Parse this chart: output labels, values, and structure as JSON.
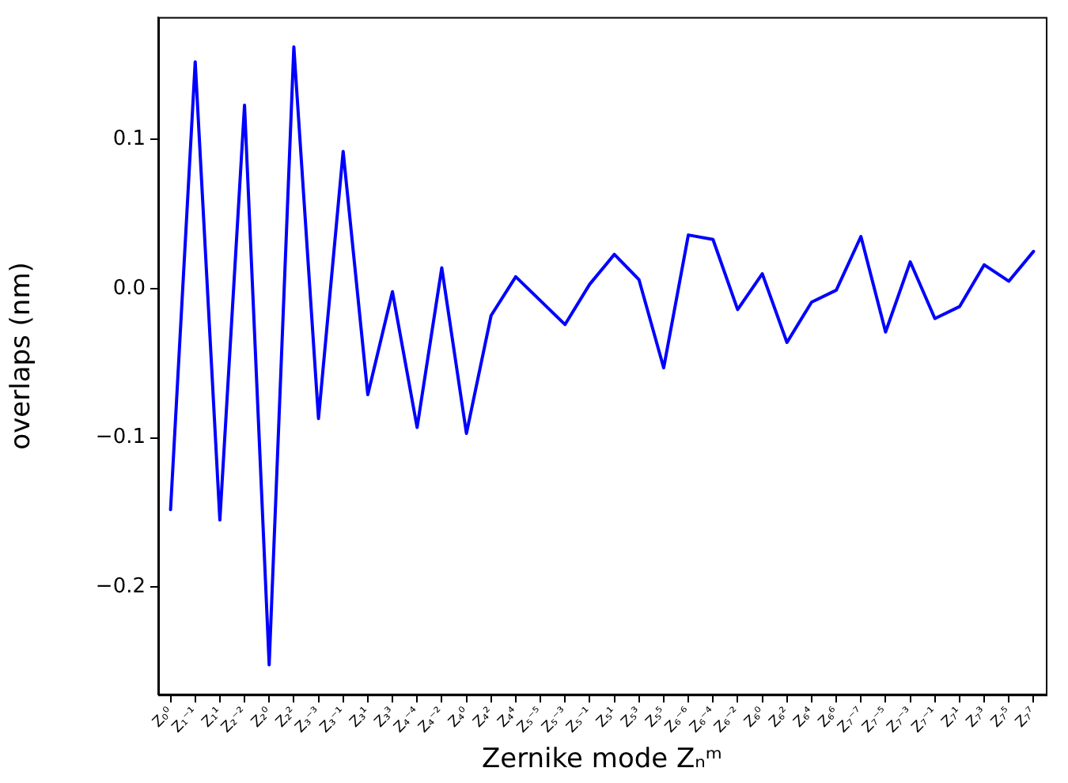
{
  "chart_data": {
    "type": "line",
    "xlabel": "Zernike mode Zₙᵐ",
    "ylabel": "overlaps (nm)",
    "categories": [
      "Z₀⁰",
      "Z₁⁻¹",
      "Z₁¹",
      "Z₂⁻²",
      "Z₂⁰",
      "Z₂²",
      "Z₃⁻³",
      "Z₃⁻¹",
      "Z₃¹",
      "Z₃³",
      "Z₄⁻⁴",
      "Z₄⁻²",
      "Z₄⁰",
      "Z₄²",
      "Z₄⁴",
      "Z₅⁻⁵",
      "Z₅⁻³",
      "Z₅⁻¹",
      "Z₅¹",
      "Z₅³",
      "Z₅⁵",
      "Z₆⁻⁶",
      "Z₆⁻⁴",
      "Z₆⁻²",
      "Z₆⁰",
      "Z₆²",
      "Z₆⁴",
      "Z₆⁶",
      "Z₇⁻⁷",
      "Z₇⁻⁵",
      "Z₇⁻³",
      "Z₇⁻¹",
      "Z₇¹",
      "Z₇³",
      "Z₇⁵",
      "Z₇⁷"
    ],
    "series": [
      {
        "color": "#0000ff",
        "values": [
          -0.148,
          0.152,
          -0.155,
          0.123,
          -0.252,
          0.162,
          -0.087,
          0.092,
          -0.071,
          -0.002,
          -0.093,
          0.014,
          -0.097,
          -0.018,
          0.008,
          -0.008,
          -0.024,
          0.003,
          0.023,
          0.006,
          -0.053,
          0.036,
          0.033,
          -0.014,
          0.01,
          -0.036,
          -0.009,
          -0.001,
          0.035,
          -0.029,
          0.018,
          -0.02,
          -0.012,
          0.016,
          0.005,
          0.025
        ]
      }
    ],
    "ylim": [
      -0.272,
      0.182
    ],
    "yticks": [
      -0.2,
      -0.1,
      {
        "value": 0,
        "label": "0.0"
      },
      0.1
    ],
    "grid": false,
    "legend": false,
    "marker": "none",
    "line_style": "solid"
  }
}
